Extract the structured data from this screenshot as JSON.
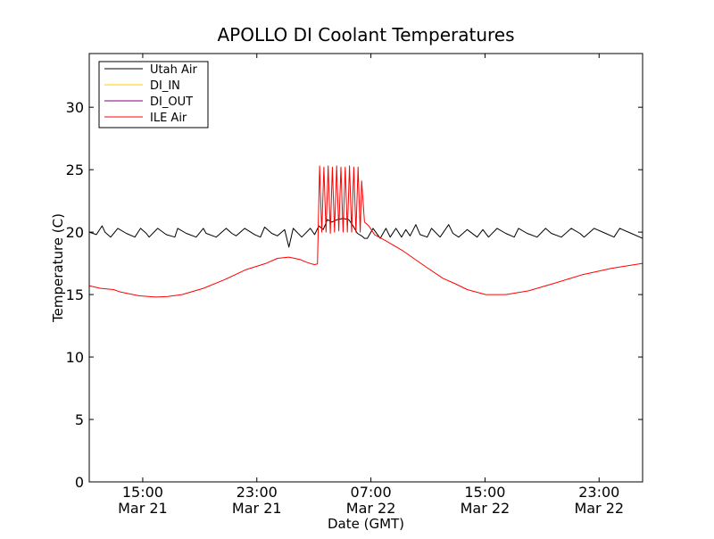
{
  "chart_data": {
    "type": "line",
    "title": "APOLLO DI Coolant Temperatures",
    "xlabel": "Date (GMT)",
    "ylabel": "Temperature (C)",
    "xlim_hours": [
      0,
      38.8
    ],
    "ylim": [
      0,
      34.3
    ],
    "y_ticks": [
      0,
      5,
      10,
      15,
      20,
      25,
      30
    ],
    "x_ticks": [
      {
        "hour": 3.75,
        "time": "15:00",
        "date": "Mar 21"
      },
      {
        "hour": 11.75,
        "time": "23:00",
        "date": "Mar 21"
      },
      {
        "hour": 19.75,
        "time": "07:00",
        "date": "Mar 22"
      },
      {
        "hour": 27.75,
        "time": "15:00",
        "date": "Mar 22"
      },
      {
        "hour": 35.75,
        "time": "23:00",
        "date": "Mar 22"
      }
    ],
    "legend_position": "top-left",
    "legend": [
      "Utah Air",
      "DI_IN",
      "DI_OUT",
      "ILE Air"
    ],
    "series": [
      {
        "name": "Utah Air",
        "color": "#000000",
        "x": [
          0.0,
          0.5,
          0.9,
          1.1,
          1.5,
          2.0,
          2.6,
          3.2,
          3.6,
          4.0,
          4.2,
          4.8,
          5.4,
          6.0,
          6.2,
          6.8,
          7.5,
          8.0,
          8.2,
          8.9,
          9.6,
          10.0,
          10.3,
          10.9,
          11.6,
          12.0,
          12.3,
          12.8,
          13.2,
          13.7,
          14.0,
          14.3,
          14.9,
          15.5,
          15.8,
          16.1,
          16.4,
          16.7,
          17.0,
          17.4,
          17.8,
          18.2,
          18.5,
          18.8,
          19.1,
          19.3,
          19.5,
          19.9,
          20.4,
          20.8,
          21.1,
          21.5,
          21.9,
          22.2,
          22.5,
          22.9,
          23.2,
          23.7,
          24.0,
          24.6,
          25.2,
          25.5,
          25.9,
          26.5,
          27.2,
          27.6,
          28.0,
          28.6,
          29.2,
          29.8,
          30.1,
          30.7,
          31.4,
          32.0,
          32.4,
          33.1,
          33.8,
          34.4,
          34.7,
          35.4,
          36.2,
          36.8,
          37.2,
          38.0,
          38.8
        ],
        "values": [
          20.0,
          19.8,
          20.5,
          20.0,
          19.6,
          20.3,
          19.9,
          19.6,
          20.3,
          19.9,
          19.6,
          20.3,
          19.8,
          19.6,
          20.3,
          19.9,
          19.6,
          20.3,
          19.9,
          19.6,
          20.3,
          19.9,
          19.7,
          20.3,
          19.8,
          19.6,
          20.4,
          19.9,
          19.7,
          20.2,
          18.8,
          20.3,
          19.6,
          20.3,
          19.8,
          20.5,
          20.2,
          21.0,
          20.8,
          21.0,
          21.1,
          21.0,
          20.5,
          19.9,
          19.7,
          19.5,
          19.5,
          20.3,
          19.5,
          20.3,
          19.6,
          20.3,
          19.6,
          20.2,
          19.7,
          20.6,
          19.8,
          19.6,
          20.3,
          19.6,
          20.6,
          19.9,
          19.6,
          20.2,
          19.6,
          20.2,
          19.6,
          20.3,
          19.9,
          19.6,
          20.3,
          19.9,
          19.6,
          20.3,
          19.9,
          19.6,
          20.3,
          19.9,
          19.6,
          20.3,
          19.9,
          19.6,
          20.3,
          19.9,
          19.5
        ]
      },
      {
        "name": "DI_IN",
        "color": "#ffcc00",
        "x": [],
        "values": []
      },
      {
        "name": "DI_OUT",
        "color": "#800080",
        "x": [],
        "values": []
      },
      {
        "name": "ILE Air",
        "color": "#ff0000",
        "x": [
          0.0,
          0.8,
          1.7,
          2.2,
          3.5,
          4.7,
          5.5,
          6.5,
          8.0,
          9.5,
          11.0,
          12.4,
          13.2,
          14.0,
          14.8,
          15.2,
          15.6,
          15.8,
          16.0,
          16.15,
          16.3,
          16.45,
          16.6,
          16.75,
          16.9,
          17.05,
          17.2,
          17.35,
          17.5,
          17.65,
          17.8,
          17.95,
          18.1,
          18.25,
          18.4,
          18.55,
          18.7,
          18.85,
          19.0,
          19.1,
          19.3,
          19.6,
          20.0,
          20.8,
          22.0,
          23.5,
          24.8,
          25.6,
          26.5,
          27.8,
          29.2,
          30.8,
          32.6,
          34.6,
          36.6,
          38.8
        ],
        "values": [
          15.7,
          15.5,
          15.4,
          15.2,
          14.9,
          14.8,
          14.85,
          15.0,
          15.5,
          16.2,
          17.0,
          17.5,
          17.9,
          18.0,
          17.8,
          17.6,
          17.45,
          17.4,
          17.45,
          25.3,
          20.0,
          25.2,
          20.0,
          25.3,
          19.9,
          25.2,
          20.0,
          25.3,
          20.1,
          25.2,
          20.0,
          25.2,
          20.0,
          25.3,
          20.0,
          25.2,
          20.0,
          25.2,
          20.0,
          24.1,
          20.8,
          20.5,
          19.8,
          19.3,
          18.5,
          17.3,
          16.3,
          15.9,
          15.4,
          15.0,
          15.0,
          15.3,
          15.9,
          16.6,
          17.1,
          17.5
        ]
      }
    ]
  }
}
